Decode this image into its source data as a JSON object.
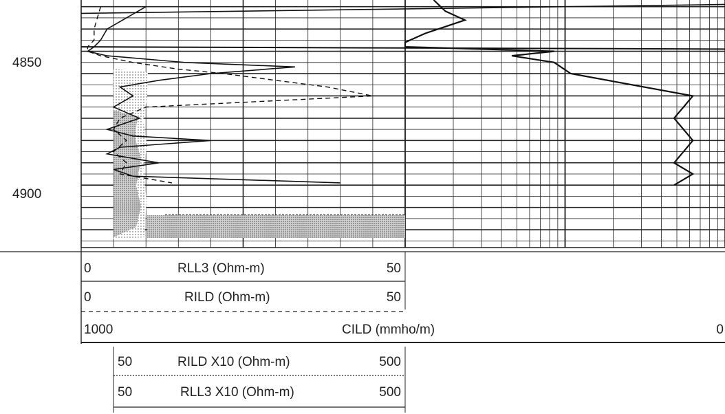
{
  "chart_data": {
    "type": "line",
    "title": "",
    "y_axis": {
      "quantity": "depth",
      "range": [
        4827,
        4938
      ],
      "tick_labels": [
        "4850",
        "4900"
      ],
      "major_every": 10,
      "minor_every": 5,
      "direction": "downward"
    },
    "tracks": [
      {
        "name": "track-1",
        "grid": "linear, 10 divisions",
        "curves": [
          {
            "name": "RLL3 (Ohm-m)",
            "min": "0",
            "max": "50",
            "line_style": "solid",
            "depth": [
              4830,
              4835,
              4840,
              4845,
              4848,
              4850,
              4852,
              4855,
              4857,
              4860,
              4863,
              4866,
              4870,
              4875,
              4880,
              4885,
              4888,
              4890,
              4893,
              4896,
              4900,
              4903,
              4906,
              4909
            ],
            "values": [
              10,
              7,
              4,
              3,
              2,
              1,
              4,
              16,
              33,
              20,
              12,
              6,
              8,
              5,
              9,
              4,
              8,
              20,
              6,
              4,
              12,
              5,
              8,
              40
            ]
          },
          {
            "name": "RILD (Ohm-m)",
            "min": "0",
            "max": "50",
            "line_style": "dashed",
            "depth": [
              4830,
              4840,
              4845,
              4848,
              4850,
              4852,
              4855,
              4858,
              4860,
              4863,
              4866,
              4870,
              4875,
              4880,
              4885,
              4890,
              4895,
              4900,
              4905,
              4909
            ],
            "values": [
              3,
              2,
              2,
              1,
              1,
              3,
              8,
              15,
              22,
              30,
              38,
              45,
              10,
              6,
              5,
              7,
              5,
              7,
              6,
              14
            ]
          }
        ]
      },
      {
        "name": "track-2",
        "grid": "logarithmic",
        "curves": [
          {
            "name": "CILD (mmho/m)",
            "min": "1000",
            "max": "0",
            "line_style": "solid heavy",
            "depth": [
              4827,
              4832,
              4836,
              4842,
              4846,
              4848,
              4850,
              4852,
              4855,
              4860,
              4870,
              4880,
              4890,
              4900,
              4905,
              4910
            ],
            "values": [
              540,
              420,
              275,
              650,
              1000,
              1000,
              40,
              100,
              40,
              28,
              2,
              3,
              2,
              3,
              2,
              3
            ]
          }
        ]
      },
      {
        "name": "track-1-backup",
        "curves": [
          {
            "name": "RILD X10 (Ohm-m)",
            "min": "50",
            "max": "500",
            "line_style": "dotted",
            "shading": "dotted fill"
          },
          {
            "name": "RLL3 X10 (Ohm-m)",
            "min": "50",
            "max": "500",
            "line_style": "solid",
            "shading": "stippled fill"
          }
        ]
      }
    ]
  },
  "legend": {
    "rll3": {
      "min": "0",
      "label": "RLL3 (Ohm-m)",
      "max": "50"
    },
    "rild": {
      "min": "0",
      "label": "RILD (Ohm-m)",
      "max": "50"
    },
    "cild": {
      "min": "1000",
      "label": "CILD (mmho/m)",
      "max": "0"
    },
    "rild_x10": {
      "min": "50",
      "label": "RILD X10 (Ohm-m)",
      "max": "500"
    },
    "rll3_x10": {
      "min": "50",
      "label": "RLL3 X10 (Ohm-m)",
      "max": "500"
    }
  },
  "colors": {
    "grid": "#222222",
    "curve": "#111111",
    "shade": "#9a9a9a"
  }
}
